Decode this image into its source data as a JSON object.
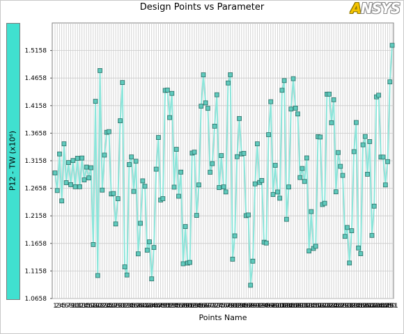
{
  "window": {
    "logo_text": "ANSYS"
  },
  "chart_data": {
    "type": "line",
    "title": "Design Points vs Parameter",
    "xlabel": "Points Name",
    "ylabel": "P12 - TW (x10⁶)",
    "ylim": [
      1.0658,
      1.5658
    ],
    "yticks": [
      1.0658,
      1.1158,
      1.1658,
      1.2158,
      1.2658,
      1.3158,
      1.3658,
      1.4158,
      1.4658,
      1.5158
    ],
    "ytick_labels": [
      "1.0658",
      "1.1158",
      "1.1658",
      "1.2158",
      "1.2658",
      "1.3158",
      "1.3658",
      "1.4158",
      "1.4658",
      "1.5158"
    ],
    "grid": true,
    "marker": "square",
    "line_color": "#8be5da",
    "marker_fill": "#5fc9bc",
    "marker_edge": "#2c6e66",
    "series": [
      {
        "values": [
          1.2937,
          1.2617,
          1.3281,
          1.2429,
          1.3465,
          1.276,
          1.3125,
          1.2724,
          1.3162,
          1.2686,
          1.3203,
          1.2686,
          1.3207,
          1.281,
          1.3043,
          1.2846,
          1.3031,
          1.1637,
          1.4236,
          1.1075,
          1.4794,
          1.2625,
          1.326,
          1.3674,
          1.3686,
          1.2555,
          1.2563,
          1.2011,
          1.2469,
          1.3883,
          1.4577,
          1.1232,
          1.1085,
          1.3088,
          1.3227,
          1.2601,
          1.3149,
          1.1469,
          1.2023,
          1.2793,
          1.2695,
          1.1535,
          1.1686,
          1.1015,
          1.1584,
          1.3005,
          1.358,
          1.2446,
          1.247,
          1.4434,
          1.4441,
          1.3941,
          1.438,
          1.2679,
          1.3365,
          1.2514,
          1.2952,
          1.1289,
          1.1964,
          1.1301,
          1.1313,
          1.3297,
          1.3314,
          1.2166,
          1.2719,
          1.4148,
          1.4717,
          1.4208,
          1.4109,
          1.2949,
          1.3105,
          1.3785,
          1.4355,
          1.2671,
          1.3252,
          1.2683,
          1.2592,
          1.4569,
          1.4718,
          1.1372,
          1.1795,
          1.3231,
          1.3924,
          1.3281,
          1.3292,
          1.2162,
          1.2174,
          1.0899,
          1.1336,
          1.2738,
          1.3465,
          1.2764,
          1.28,
          1.1679,
          1.1665,
          1.3631,
          1.4229,
          1.2545,
          1.3075,
          1.2591,
          1.2478,
          1.4437,
          1.4612,
          1.2095,
          1.2682,
          1.4096,
          1.4647,
          1.4112,
          1.4007,
          1.2853,
          1.3018,
          1.2782,
          1.3209,
          1.152,
          1.2235,
          1.1567,
          1.1606,
          1.3595,
          1.3588,
          1.2363,
          1.2386,
          1.4366,
          1.4367,
          1.3848,
          1.4265,
          1.2594,
          1.3307,
          1.3056,
          1.2892,
          1.1785,
          1.1947,
          1.1303,
          1.1888,
          1.3323,
          1.3852,
          1.1575,
          1.1471,
          1.3447,
          1.3598,
          1.2913,
          1.3506,
          1.1803,
          1.2334,
          1.4317,
          1.4347,
          1.3224,
          1.3224,
          1.2719,
          1.3142,
          1.4589,
          1.5253
        ]
      }
    ],
    "categories": [
      "1",
      "2",
      "3",
      "4",
      "5",
      "6",
      "7",
      "8",
      "9",
      "10",
      "11",
      "12",
      "13",
      "14",
      "15",
      "16",
      "17",
      "18",
      "19",
      "20",
      "21",
      "22",
      "23",
      "24",
      "25",
      "26",
      "27",
      "28",
      "29",
      "30",
      "31",
      "32",
      "33",
      "34",
      "35",
      "36",
      "37",
      "38",
      "39",
      "40",
      "41",
      "42",
      "43",
      "44",
      "45",
      "46",
      "47",
      "48",
      "49",
      "50",
      "51",
      "52",
      "53",
      "54",
      "55",
      "56",
      "57",
      "58",
      "59",
      "60",
      "61",
      "62",
      "63",
      "64",
      "65",
      "66",
      "67",
      "68",
      "69",
      "70",
      "71",
      "72",
      "73",
      "74",
      "75",
      "76",
      "77",
      "78",
      "79",
      "80",
      "81",
      "82",
      "83",
      "84",
      "85",
      "86",
      "87",
      "88",
      "89",
      "90",
      "91",
      "92",
      "93",
      "94",
      "95",
      "96",
      "97",
      "98",
      "99",
      "100",
      "101",
      "102",
      "103",
      "104",
      "105",
      "106",
      "107",
      "108",
      "109",
      "110",
      "111",
      "112",
      "113",
      "114",
      "115",
      "116",
      "117",
      "118",
      "119",
      "120",
      "121",
      "122",
      "123",
      "124",
      "125",
      "126",
      "127",
      "128",
      "129",
      "130",
      "131",
      "132",
      "133",
      "134",
      "135",
      "136",
      "137",
      "138",
      "139",
      "140",
      "141",
      "142",
      "143",
      "144",
      "145",
      "146",
      "147",
      "148",
      "149",
      "150",
      "151"
    ]
  }
}
